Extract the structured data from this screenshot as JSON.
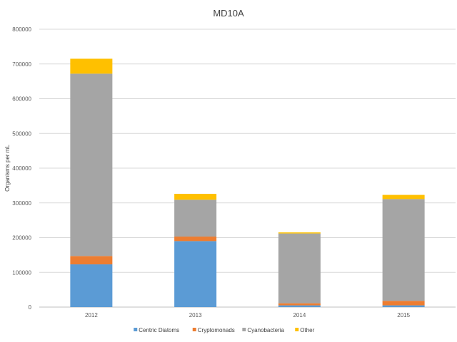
{
  "chart_data": {
    "type": "bar",
    "stacked": true,
    "title": "MD10A",
    "xlabel": "",
    "ylabel": "Organisms per mL",
    "ylim": [
      0,
      800000
    ],
    "yticks": [
      0,
      100000,
      200000,
      300000,
      400000,
      500000,
      600000,
      700000,
      800000
    ],
    "grid": true,
    "legend_position": "bottom",
    "categories": [
      "2012",
      "2013",
      "2014",
      "2015"
    ],
    "series": [
      {
        "name": "Centric Diatoms",
        "color": "#5B9BD5",
        "values": [
          123000,
          190000,
          5000,
          5000
        ]
      },
      {
        "name": "Cryptomonads",
        "color": "#ED7D31",
        "values": [
          24000,
          13000,
          6000,
          13000
        ]
      },
      {
        "name": "Cyanobacteria",
        "color": "#A5A5A5",
        "values": [
          525000,
          106000,
          201000,
          293000
        ]
      },
      {
        "name": "Other",
        "color": "#FFC000",
        "values": [
          43000,
          17000,
          3000,
          12000
        ]
      }
    ]
  }
}
